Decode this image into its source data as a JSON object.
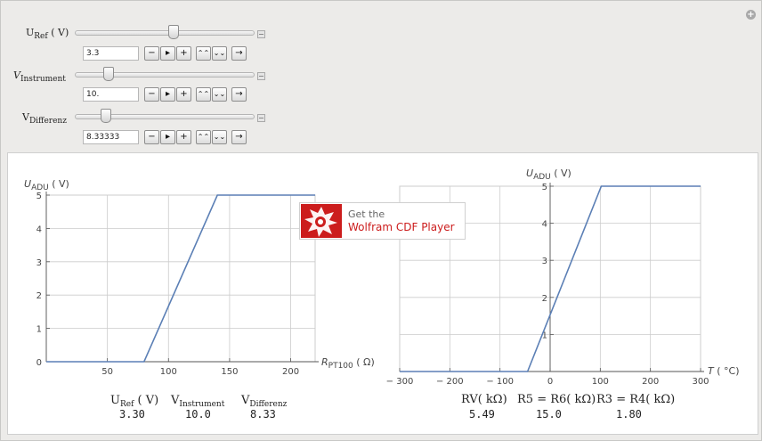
{
  "controls": [
    {
      "label_main": "U",
      "label_sub": "Ref",
      "label_unit": " ( V)",
      "value": "3.3",
      "fraction": 0.55
    },
    {
      "label_main": "V",
      "label_sub": "Instrument",
      "label_unit": "",
      "value": "10.",
      "fraction": 0.17
    },
    {
      "label_main": "V",
      "label_sub": "Differenz",
      "label_unit": "",
      "value": "8.33333",
      "fraction": 0.15
    }
  ],
  "buttons": {
    "minus": "−",
    "play": "▸",
    "plus": "+",
    "faster": "⌃⌃",
    "slower": "⌄⌄",
    "step": "→"
  },
  "readouts_left": {
    "labels": [
      {
        "main": "U",
        "sub": "Ref",
        "unit": " ( V)"
      },
      {
        "main": "V",
        "sub": "Instrument",
        "unit": ""
      },
      {
        "main": "V",
        "sub": "Differenz",
        "unit": ""
      }
    ],
    "values": [
      "3.30",
      "10.0",
      "8.33"
    ]
  },
  "readouts_right": {
    "labels": [
      "RV( kΩ)",
      "R5 = R6( kΩ)",
      "R3 = R4( kΩ)"
    ],
    "values": [
      "5.49",
      "15.0",
      "1.80"
    ]
  },
  "cdf_badge": {
    "line1": "Get the",
    "line2": "Wolfram CDF Player"
  },
  "colors": {
    "line": "#5b7fb5",
    "grid": "#cccccc",
    "accent_red": "#cc1d1d"
  },
  "chart_data": [
    {
      "type": "line",
      "ylabel_main": "U",
      "ylabel_sub": "ADU",
      "ylabel_unit": " ( V)",
      "xlabel_main": "R",
      "xlabel_sub": "PT100",
      "xlabel_unit": " ( Ω)",
      "xlim": [
        0,
        220
      ],
      "ylim": [
        0,
        5
      ],
      "xticks": [
        50,
        100,
        150,
        200
      ],
      "yticks": [
        0,
        1,
        2,
        3,
        4,
        5
      ],
      "grid": true,
      "x": [
        0,
        80,
        140,
        220
      ],
      "y": [
        0,
        0,
        5,
        5
      ]
    },
    {
      "type": "line",
      "ylabel_main": "U",
      "ylabel_sub": "ADU",
      "ylabel_unit": " ( V)",
      "xlabel_main": "T",
      "xlabel_sub": "",
      "xlabel_unit": " ( °C)",
      "xlim": [
        -300,
        300
      ],
      "ylim": [
        0,
        5
      ],
      "xticks": [
        -300,
        -200,
        -100,
        0,
        100,
        200,
        300
      ],
      "yticks": [
        1,
        2,
        3,
        4,
        5
      ],
      "grid": true,
      "x": [
        -300,
        -45,
        102,
        300
      ],
      "y": [
        0,
        0,
        5,
        5
      ]
    }
  ]
}
